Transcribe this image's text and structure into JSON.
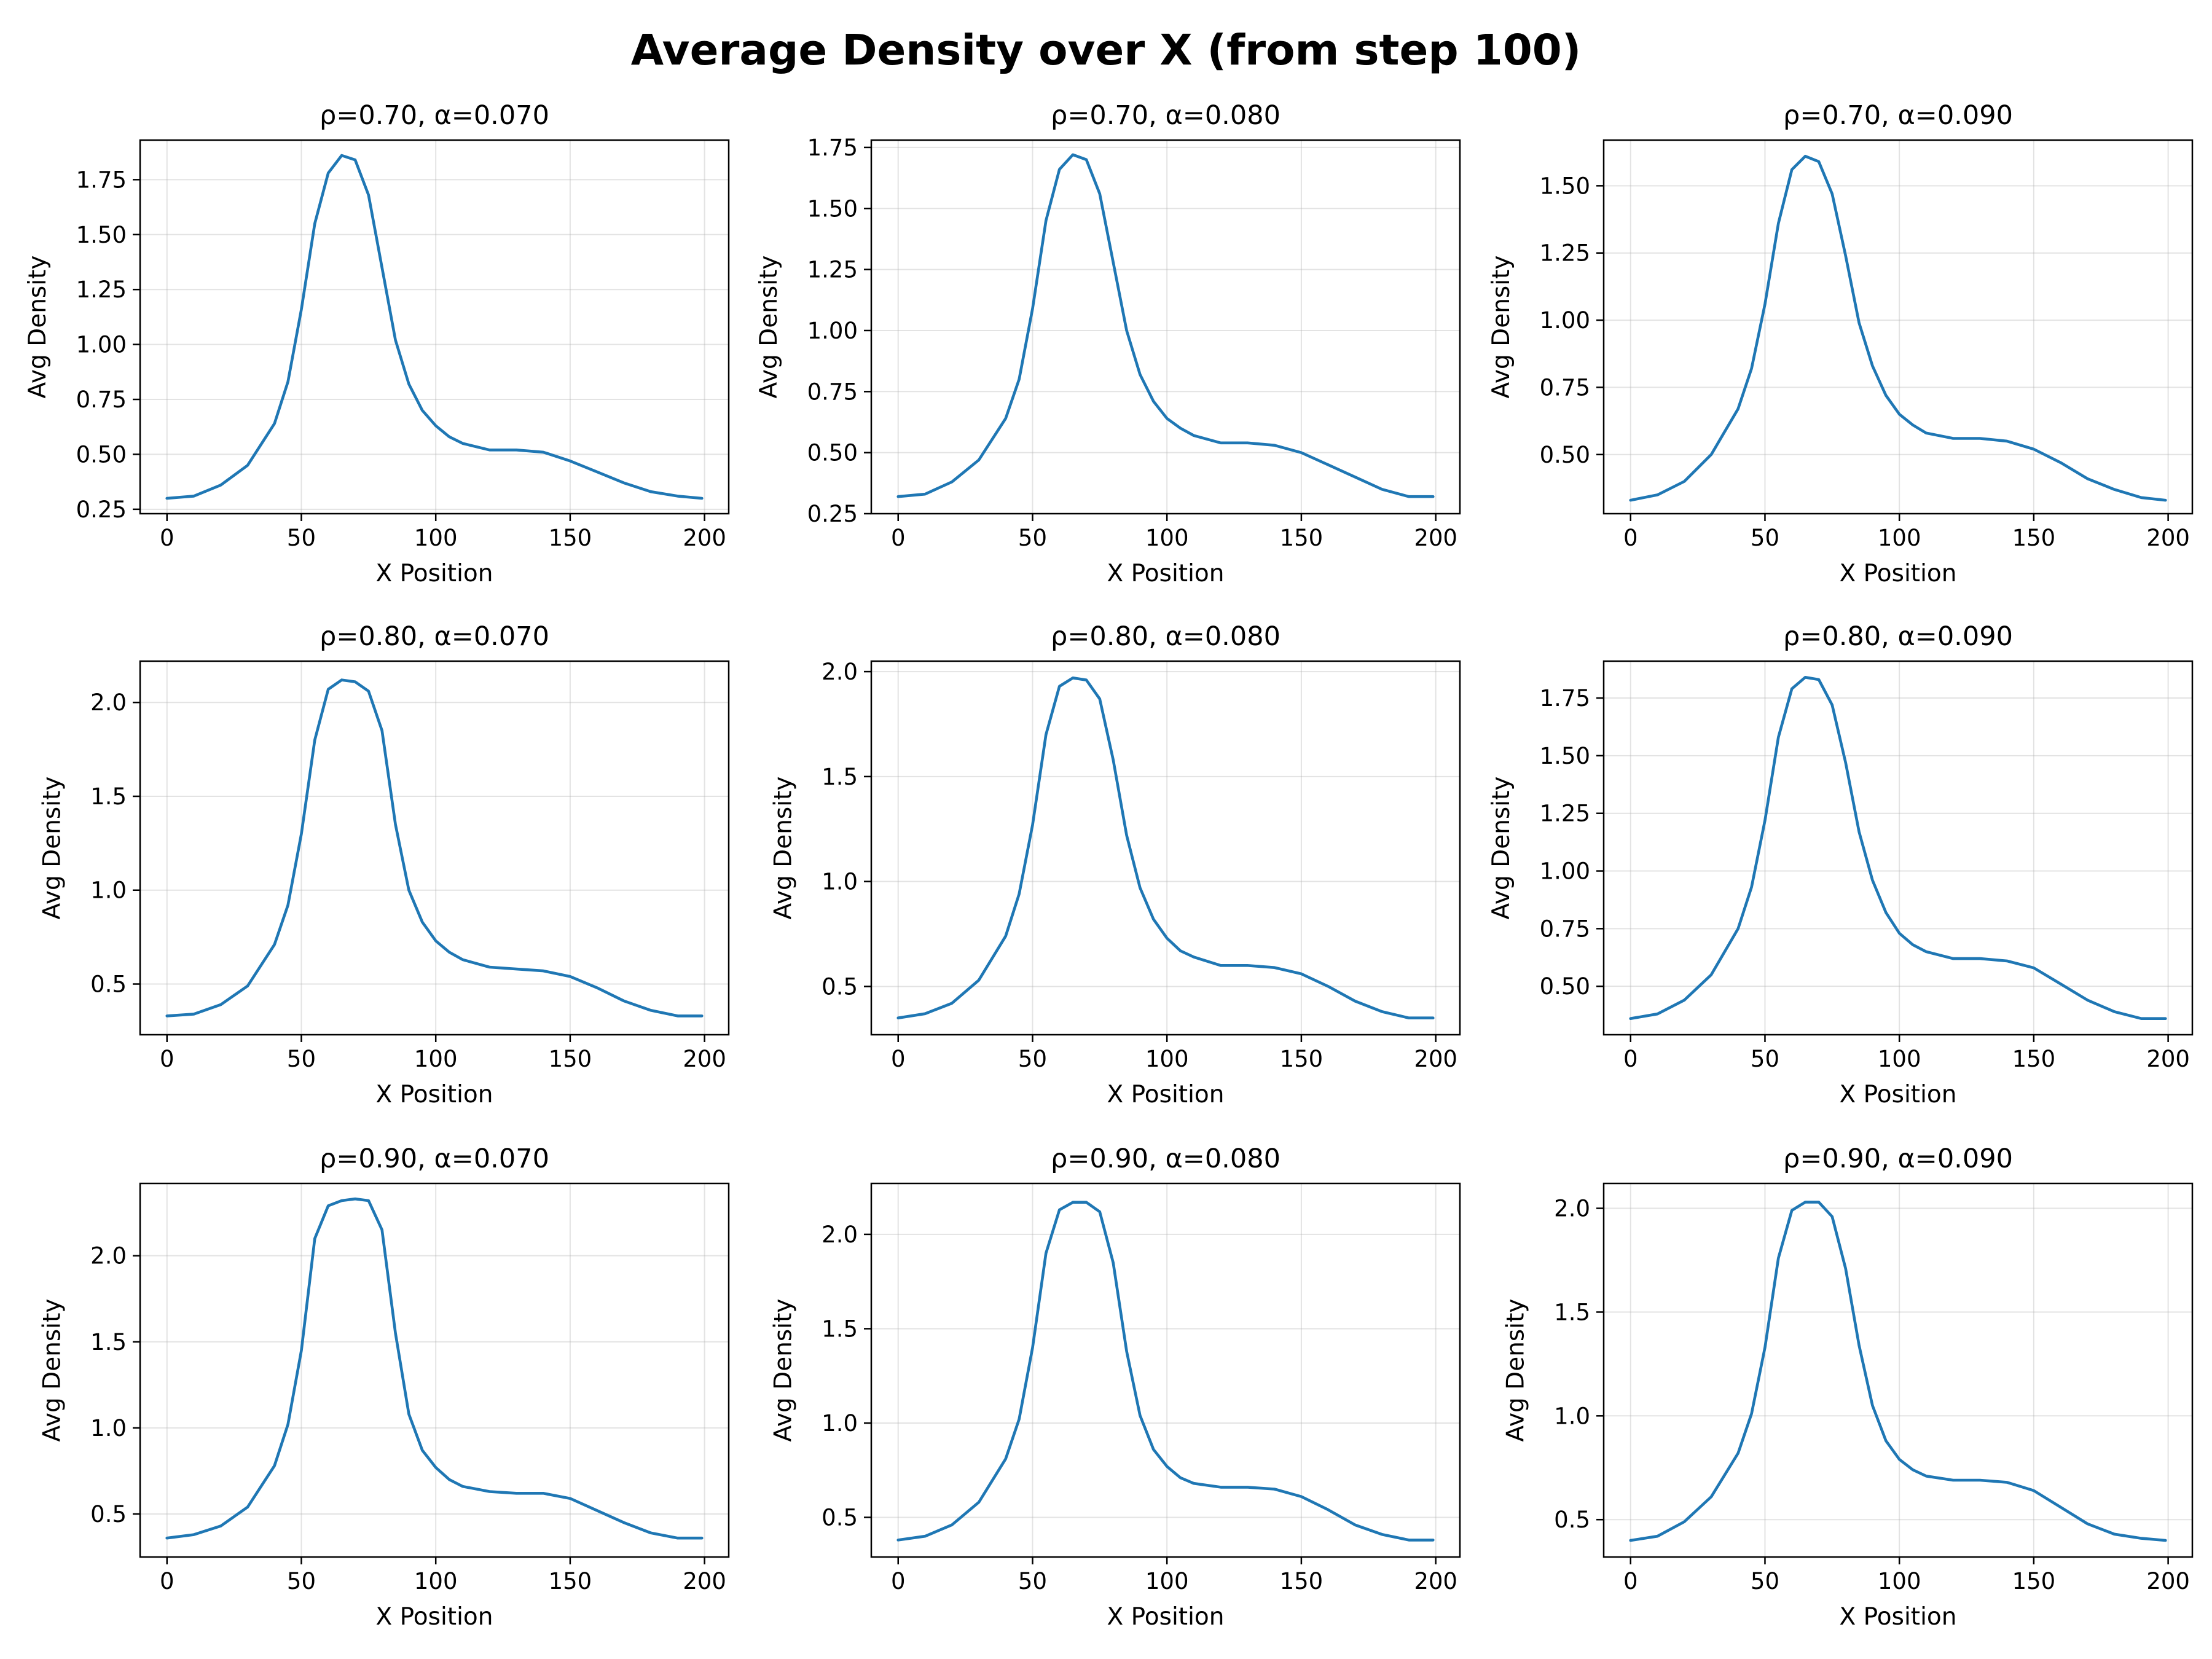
{
  "figure": {
    "title": "Average Density over X (from step 100)"
  },
  "style": {
    "line_color": "#1f77b4",
    "grid": true
  },
  "chart_data": [
    {
      "type": "line",
      "title": "ρ=0.70, α=0.070",
      "xlabel": "X Position",
      "ylabel": "Avg Density",
      "xlim": [
        -10,
        209
      ],
      "ylim": [
        0.23,
        1.93
      ],
      "xticks": [
        0,
        50,
        100,
        150,
        200
      ],
      "yticks": [
        0.25,
        0.5,
        0.75,
        1.0,
        1.25,
        1.5,
        1.75
      ],
      "ytick_labels": [
        "0.25",
        "0.50",
        "0.75",
        "1.00",
        "1.25",
        "1.50",
        "1.75"
      ],
      "series": [
        {
          "x": [
            0,
            10,
            20,
            30,
            40,
            45,
            50,
            55,
            60,
            65,
            70,
            75,
            80,
            85,
            90,
            95,
            100,
            105,
            110,
            120,
            130,
            140,
            150,
            160,
            170,
            180,
            190,
            199
          ],
          "y": [
            0.3,
            0.31,
            0.36,
            0.45,
            0.64,
            0.83,
            1.16,
            1.55,
            1.78,
            1.86,
            1.84,
            1.68,
            1.35,
            1.02,
            0.82,
            0.7,
            0.63,
            0.58,
            0.55,
            0.52,
            0.52,
            0.51,
            0.47,
            0.42,
            0.37,
            0.33,
            0.31,
            0.3
          ]
        }
      ]
    },
    {
      "type": "line",
      "title": "ρ=0.70, α=0.080",
      "xlabel": "X Position",
      "ylabel": "Avg Density",
      "xlim": [
        -10,
        209
      ],
      "ylim": [
        0.25,
        1.78
      ],
      "xticks": [
        0,
        50,
        100,
        150,
        200
      ],
      "yticks": [
        0.25,
        0.5,
        0.75,
        1.0,
        1.25,
        1.5,
        1.75
      ],
      "ytick_labels": [
        "0.25",
        "0.50",
        "0.75",
        "1.00",
        "1.25",
        "1.50",
        "1.75"
      ],
      "series": [
        {
          "x": [
            0,
            10,
            20,
            30,
            40,
            45,
            50,
            55,
            60,
            65,
            70,
            75,
            80,
            85,
            90,
            95,
            100,
            105,
            110,
            120,
            130,
            140,
            150,
            160,
            170,
            180,
            190,
            199
          ],
          "y": [
            0.32,
            0.33,
            0.38,
            0.47,
            0.64,
            0.8,
            1.09,
            1.45,
            1.66,
            1.72,
            1.7,
            1.56,
            1.28,
            1.0,
            0.82,
            0.71,
            0.64,
            0.6,
            0.57,
            0.54,
            0.54,
            0.53,
            0.5,
            0.45,
            0.4,
            0.35,
            0.32,
            0.32
          ]
        }
      ]
    },
    {
      "type": "line",
      "title": "ρ=0.70, α=0.090",
      "xlabel": "X Position",
      "ylabel": "Avg Density",
      "xlim": [
        -10,
        209
      ],
      "ylim": [
        0.28,
        1.67
      ],
      "xticks": [
        0,
        50,
        100,
        150,
        200
      ],
      "yticks": [
        0.5,
        0.75,
        1.0,
        1.25,
        1.5
      ],
      "ytick_labels": [
        "0.50",
        "0.75",
        "1.00",
        "1.25",
        "1.50"
      ],
      "series": [
        {
          "x": [
            0,
            10,
            20,
            30,
            40,
            45,
            50,
            55,
            60,
            65,
            70,
            75,
            80,
            85,
            90,
            95,
            100,
            105,
            110,
            120,
            130,
            140,
            150,
            160,
            170,
            180,
            190,
            199
          ],
          "y": [
            0.33,
            0.35,
            0.4,
            0.5,
            0.67,
            0.82,
            1.06,
            1.36,
            1.56,
            1.61,
            1.59,
            1.47,
            1.24,
            0.99,
            0.83,
            0.72,
            0.65,
            0.61,
            0.58,
            0.56,
            0.56,
            0.55,
            0.52,
            0.47,
            0.41,
            0.37,
            0.34,
            0.33
          ]
        }
      ]
    },
    {
      "type": "line",
      "title": "ρ=0.80, α=0.070",
      "xlabel": "X Position",
      "ylabel": "Avg Density",
      "xlim": [
        -10,
        209
      ],
      "ylim": [
        0.23,
        2.22
      ],
      "xticks": [
        0,
        50,
        100,
        150,
        200
      ],
      "yticks": [
        0.5,
        1.0,
        1.5,
        2.0
      ],
      "ytick_labels": [
        "0.5",
        "1.0",
        "1.5",
        "2.0"
      ],
      "series": [
        {
          "x": [
            0,
            10,
            20,
            30,
            40,
            45,
            50,
            55,
            60,
            65,
            70,
            75,
            80,
            85,
            90,
            95,
            100,
            105,
            110,
            120,
            130,
            140,
            150,
            160,
            170,
            180,
            190,
            199
          ],
          "y": [
            0.33,
            0.34,
            0.39,
            0.49,
            0.71,
            0.92,
            1.3,
            1.8,
            2.07,
            2.12,
            2.11,
            2.06,
            1.85,
            1.35,
            1.0,
            0.83,
            0.73,
            0.67,
            0.63,
            0.59,
            0.58,
            0.57,
            0.54,
            0.48,
            0.41,
            0.36,
            0.33,
            0.33
          ]
        }
      ]
    },
    {
      "type": "line",
      "title": "ρ=0.80, α=0.080",
      "xlabel": "X Position",
      "ylabel": "Avg Density",
      "xlim": [
        -10,
        209
      ],
      "ylim": [
        0.27,
        2.05
      ],
      "xticks": [
        0,
        50,
        100,
        150,
        200
      ],
      "yticks": [
        0.5,
        1.0,
        1.5,
        2.0
      ],
      "ytick_labels": [
        "0.5",
        "1.0",
        "1.5",
        "2.0"
      ],
      "series": [
        {
          "x": [
            0,
            10,
            20,
            30,
            40,
            45,
            50,
            55,
            60,
            65,
            70,
            75,
            80,
            85,
            90,
            95,
            100,
            105,
            110,
            120,
            130,
            140,
            150,
            160,
            170,
            180,
            190,
            199
          ],
          "y": [
            0.35,
            0.37,
            0.42,
            0.53,
            0.74,
            0.94,
            1.27,
            1.7,
            1.93,
            1.97,
            1.96,
            1.87,
            1.58,
            1.22,
            0.97,
            0.82,
            0.73,
            0.67,
            0.64,
            0.6,
            0.6,
            0.59,
            0.56,
            0.5,
            0.43,
            0.38,
            0.35,
            0.35
          ]
        }
      ]
    },
    {
      "type": "line",
      "title": "ρ=0.80, α=0.090",
      "xlabel": "X Position",
      "ylabel": "Avg Density",
      "xlim": [
        -10,
        209
      ],
      "ylim": [
        0.29,
        1.91
      ],
      "xticks": [
        0,
        50,
        100,
        150,
        200
      ],
      "yticks": [
        0.5,
        0.75,
        1.0,
        1.25,
        1.5,
        1.75
      ],
      "ytick_labels": [
        "0.50",
        "0.75",
        "1.00",
        "1.25",
        "1.50",
        "1.75"
      ],
      "series": [
        {
          "x": [
            0,
            10,
            20,
            30,
            40,
            45,
            50,
            55,
            60,
            65,
            70,
            75,
            80,
            85,
            90,
            95,
            100,
            105,
            110,
            120,
            130,
            140,
            150,
            160,
            170,
            180,
            190,
            199
          ],
          "y": [
            0.36,
            0.38,
            0.44,
            0.55,
            0.75,
            0.93,
            1.22,
            1.58,
            1.79,
            1.84,
            1.83,
            1.72,
            1.47,
            1.17,
            0.96,
            0.82,
            0.73,
            0.68,
            0.65,
            0.62,
            0.62,
            0.61,
            0.58,
            0.51,
            0.44,
            0.39,
            0.36,
            0.36
          ]
        }
      ]
    },
    {
      "type": "line",
      "title": "ρ=0.90, α=0.070",
      "xlabel": "X Position",
      "ylabel": "Avg Density",
      "xlim": [
        -10,
        209
      ],
      "ylim": [
        0.25,
        2.42
      ],
      "xticks": [
        0,
        50,
        100,
        150,
        200
      ],
      "yticks": [
        0.5,
        1.0,
        1.5,
        2.0
      ],
      "ytick_labels": [
        "0.5",
        "1.0",
        "1.5",
        "2.0"
      ],
      "series": [
        {
          "x": [
            0,
            10,
            20,
            30,
            40,
            45,
            50,
            55,
            60,
            65,
            70,
            75,
            80,
            85,
            90,
            95,
            100,
            105,
            110,
            120,
            130,
            140,
            150,
            160,
            170,
            180,
            190,
            199
          ],
          "y": [
            0.36,
            0.38,
            0.43,
            0.54,
            0.78,
            1.02,
            1.45,
            2.1,
            2.29,
            2.32,
            2.33,
            2.32,
            2.15,
            1.55,
            1.08,
            0.87,
            0.77,
            0.7,
            0.66,
            0.63,
            0.62,
            0.62,
            0.59,
            0.52,
            0.45,
            0.39,
            0.36,
            0.36
          ]
        }
      ]
    },
    {
      "type": "line",
      "title": "ρ=0.90, α=0.080",
      "xlabel": "X Position",
      "ylabel": "Avg Density",
      "xlim": [
        -10,
        209
      ],
      "ylim": [
        0.29,
        2.27
      ],
      "xticks": [
        0,
        50,
        100,
        150,
        200
      ],
      "yticks": [
        0.5,
        1.0,
        1.5,
        2.0
      ],
      "ytick_labels": [
        "0.5",
        "1.0",
        "1.5",
        "2.0"
      ],
      "series": [
        {
          "x": [
            0,
            10,
            20,
            30,
            40,
            45,
            50,
            55,
            60,
            65,
            70,
            75,
            80,
            85,
            90,
            95,
            100,
            105,
            110,
            120,
            130,
            140,
            150,
            160,
            170,
            180,
            190,
            199
          ],
          "y": [
            0.38,
            0.4,
            0.46,
            0.58,
            0.81,
            1.02,
            1.4,
            1.9,
            2.13,
            2.17,
            2.17,
            2.12,
            1.85,
            1.38,
            1.04,
            0.86,
            0.77,
            0.71,
            0.68,
            0.66,
            0.66,
            0.65,
            0.61,
            0.54,
            0.46,
            0.41,
            0.38,
            0.38
          ]
        }
      ]
    },
    {
      "type": "line",
      "title": "ρ=0.90, α=0.090",
      "xlabel": "X Position",
      "ylabel": "Avg Density",
      "xlim": [
        -10,
        209
      ],
      "ylim": [
        0.32,
        2.12
      ],
      "xticks": [
        0,
        50,
        100,
        150,
        200
      ],
      "yticks": [
        0.5,
        1.0,
        1.5,
        2.0
      ],
      "ytick_labels": [
        "0.5",
        "1.0",
        "1.5",
        "2.0"
      ],
      "series": [
        {
          "x": [
            0,
            10,
            20,
            30,
            40,
            45,
            50,
            55,
            60,
            65,
            70,
            75,
            80,
            85,
            90,
            95,
            100,
            105,
            110,
            120,
            130,
            140,
            150,
            160,
            170,
            180,
            190,
            199
          ],
          "y": [
            0.4,
            0.42,
            0.49,
            0.61,
            0.82,
            1.01,
            1.33,
            1.76,
            1.99,
            2.03,
            2.03,
            1.96,
            1.71,
            1.34,
            1.05,
            0.88,
            0.79,
            0.74,
            0.71,
            0.69,
            0.69,
            0.68,
            0.64,
            0.56,
            0.48,
            0.43,
            0.41,
            0.4
          ]
        }
      ]
    }
  ]
}
